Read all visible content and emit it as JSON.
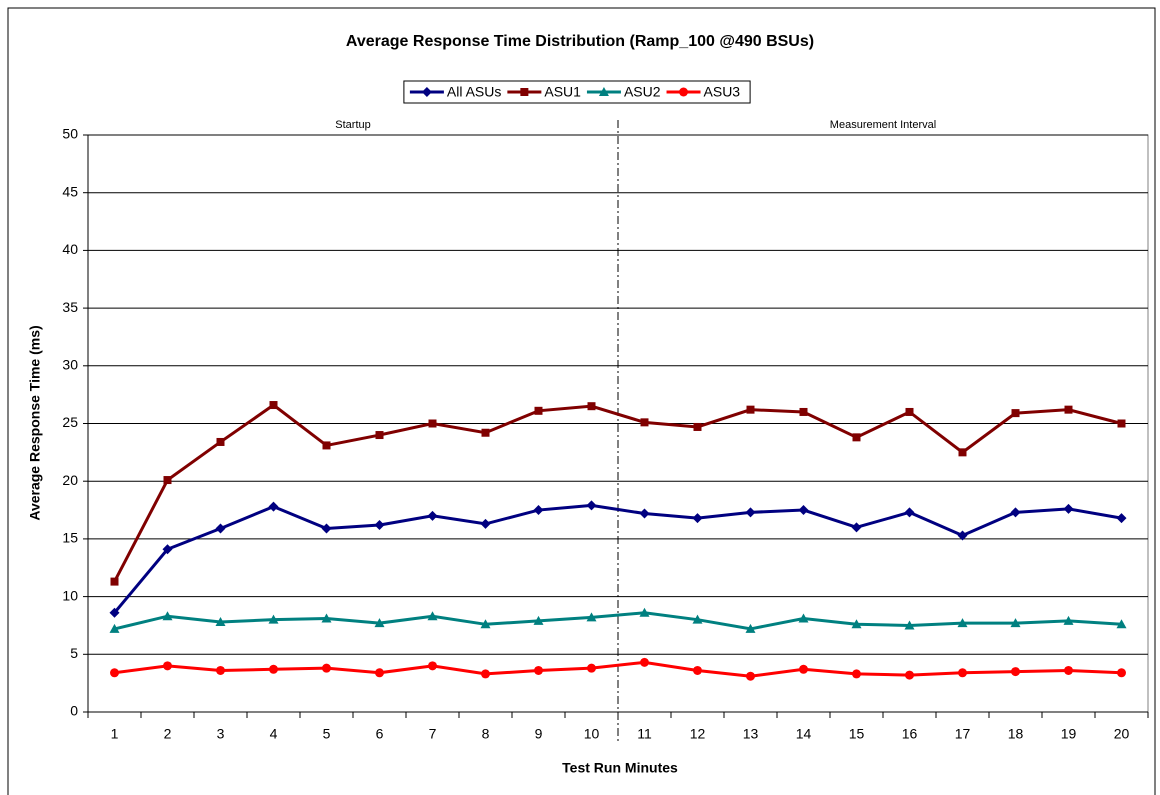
{
  "chart_data": {
    "type": "line",
    "title": "Average Response Time Distribution (Ramp_100 @490 BSUs)",
    "x_label": "Test Run Minutes",
    "y_label": "Average Response Time (ms)",
    "categories": [
      "1",
      "2",
      "3",
      "4",
      "5",
      "6",
      "7",
      "8",
      "9",
      "10",
      "11",
      "12",
      "13",
      "14",
      "15",
      "16",
      "17",
      "18",
      "19",
      "20"
    ],
    "series": [
      {
        "name": "All ASUs",
        "color": "#000080",
        "marker": "diamond",
        "values": [
          8.6,
          14.1,
          15.9,
          17.8,
          15.9,
          16.2,
          17.0,
          16.3,
          17.5,
          17.9,
          17.2,
          16.8,
          17.3,
          17.5,
          16.0,
          17.3,
          15.3,
          17.3,
          17.6,
          16.8
        ]
      },
      {
        "name": "ASU1",
        "color": "#800000",
        "marker": "square",
        "values": [
          11.3,
          20.1,
          23.4,
          26.6,
          23.1,
          24.0,
          25.0,
          24.2,
          26.1,
          26.5,
          25.1,
          24.7,
          26.2,
          26.0,
          23.8,
          26.0,
          22.5,
          25.9,
          26.2,
          25.0
        ]
      },
      {
        "name": "ASU2",
        "color": "#008080",
        "marker": "triangle",
        "values": [
          7.2,
          8.3,
          7.8,
          8.0,
          8.1,
          7.7,
          8.3,
          7.6,
          7.9,
          8.2,
          8.6,
          8.0,
          7.2,
          8.1,
          7.6,
          7.5,
          7.7,
          7.7,
          7.9,
          7.6
        ]
      },
      {
        "name": "ASU3",
        "color": "#ff0000",
        "marker": "circle",
        "values": [
          3.4,
          4.0,
          3.6,
          3.7,
          3.8,
          3.4,
          4.0,
          3.3,
          3.6,
          3.8,
          4.3,
          3.6,
          3.1,
          3.7,
          3.3,
          3.2,
          3.4,
          3.5,
          3.6,
          3.4
        ]
      }
    ],
    "phases": [
      {
        "label": "Startup",
        "from": "1",
        "to": "10"
      },
      {
        "label": "Measurement Interval",
        "from": "11",
        "to": "20"
      }
    ],
    "ylim": [
      0,
      50
    ],
    "yticks": [
      0,
      5,
      10,
      15,
      20,
      25,
      30,
      35,
      40,
      45,
      50
    ],
    "grid": true,
    "legend": "top"
  }
}
